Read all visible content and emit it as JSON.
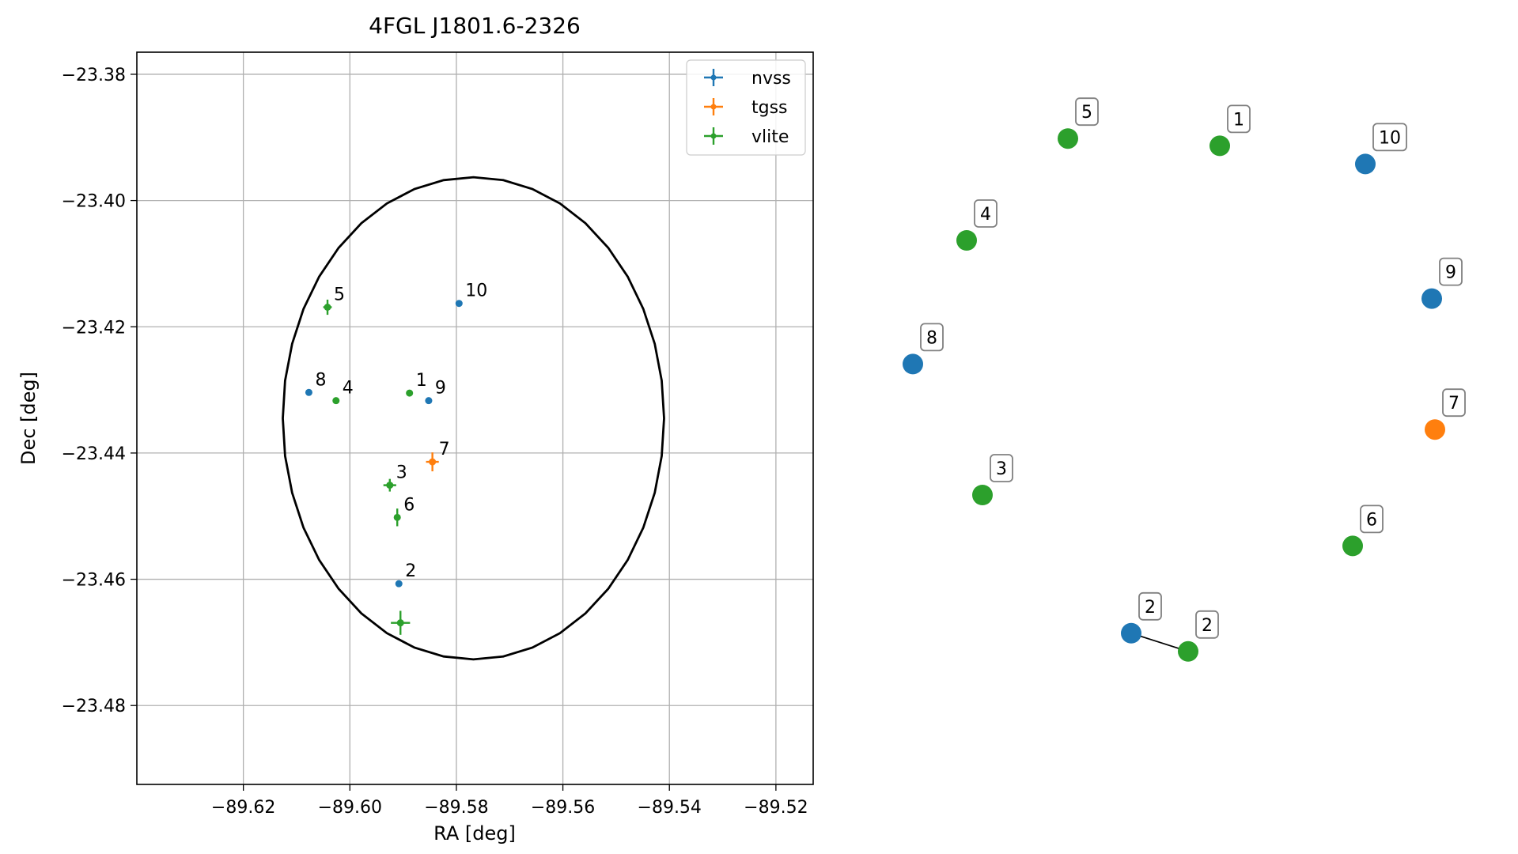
{
  "chart_data": [
    {
      "type": "scatter",
      "title": "4FGL J1801.6-2326",
      "xlabel": "RA [deg]",
      "ylabel": "Dec [deg]",
      "xlim": [
        -89.64,
        -89.513
      ],
      "ylim": [
        -23.4925,
        -23.3765
      ],
      "grid": true,
      "xticks": [
        -89.62,
        -89.6,
        -89.58,
        -89.56,
        -89.54,
        -89.52
      ],
      "yticks": [
        -23.38,
        -23.4,
        -23.42,
        -23.44,
        -23.46,
        -23.48
      ],
      "xtick_labels": [
        "−89.62",
        "−89.60",
        "−89.58",
        "−89.56",
        "−89.54",
        "−89.52"
      ],
      "ytick_labels": [
        "−23.38",
        "−23.40",
        "−23.42",
        "−23.44",
        "−23.46",
        "−23.48"
      ],
      "legend_position": "top-right",
      "series": [
        {
          "name": "nvss",
          "color": "#1f77b4",
          "points": [
            {
              "label": "10",
              "x": -89.5795,
              "y": -23.4163,
              "xerr": 0.0,
              "yerr": 0.0
            },
            {
              "label": "8",
              "x": -89.6077,
              "y": -23.4304,
              "xerr": 0.0,
              "yerr": 0.0
            },
            {
              "label": "9",
              "x": -89.5852,
              "y": -23.4317,
              "xerr": 0.0,
              "yerr": 0.0
            },
            {
              "label": "2",
              "x": -89.5908,
              "y": -23.4607,
              "xerr": 0.0,
              "yerr": 0.0
            }
          ]
        },
        {
          "name": "tgss",
          "color": "#ff7f0e",
          "points": [
            {
              "label": "7",
              "x": -89.5845,
              "y": -23.4414,
              "xerr": 0.0012,
              "yerr": 0.0015
            }
          ]
        },
        {
          "name": "vlite",
          "color": "#2ca02c",
          "points": [
            {
              "label": "5",
              "x": -89.6042,
              "y": -23.4169,
              "xerr": 0.0008,
              "yerr": 0.0012
            },
            {
              "label": "4",
              "x": -89.6026,
              "y": -23.4317,
              "xerr": 0.0,
              "yerr": 0.0
            },
            {
              "label": "1",
              "x": -89.5888,
              "y": -23.4305,
              "xerr": 0.0006,
              "yerr": 0.0
            },
            {
              "label": "3",
              "x": -89.5925,
              "y": -23.4451,
              "xerr": 0.0012,
              "yerr": 0.001
            },
            {
              "label": "6",
              "x": -89.5911,
              "y": -23.4502,
              "xerr": 0.0,
              "yerr": 0.0014
            },
            {
              "label": "",
              "x": -89.5905,
              "y": -23.4669,
              "xerr": 0.0018,
              "yerr": 0.0019
            }
          ]
        }
      ],
      "ellipse": {
        "center_x": -89.5768,
        "center_y": -23.4345,
        "ra_half_width": 0.0358,
        "dec_half_height": 0.0382,
        "color": "#000000"
      }
    },
    {
      "type": "scatter",
      "description": "network layout of labelled sources",
      "nodes": [
        {
          "label": "5",
          "color": "#2ca02c",
          "x": -0.3,
          "y": 0.88
        },
        {
          "label": "1",
          "color": "#2ca02c",
          "x": 0.18,
          "y": 0.86
        },
        {
          "label": "10",
          "color": "#1f77b4",
          "x": 0.64,
          "y": 0.81
        },
        {
          "label": "4",
          "color": "#2ca02c",
          "x": -0.62,
          "y": 0.6
        },
        {
          "label": "9",
          "color": "#1f77b4",
          "x": 0.85,
          "y": 0.44
        },
        {
          "label": "8",
          "color": "#1f77b4",
          "x": -0.79,
          "y": 0.26
        },
        {
          "label": "7",
          "color": "#ff7f0e",
          "x": 0.86,
          "y": 0.08
        },
        {
          "label": "3",
          "color": "#2ca02c",
          "x": -0.57,
          "y": -0.1
        },
        {
          "label": "6",
          "color": "#2ca02c",
          "x": 0.6,
          "y": -0.24
        },
        {
          "label": "2",
          "color": "#1f77b4",
          "x": -0.1,
          "y": -0.48
        },
        {
          "label": "2",
          "color": "#2ca02c",
          "x": 0.08,
          "y": -0.53
        }
      ],
      "edges": [
        [
          9,
          10
        ]
      ]
    }
  ],
  "legend": [
    {
      "label": "nvss",
      "color": "#1f77b4"
    },
    {
      "label": "tgss",
      "color": "#ff7f0e"
    },
    {
      "label": "vlite",
      "color": "#2ca02c"
    }
  ]
}
